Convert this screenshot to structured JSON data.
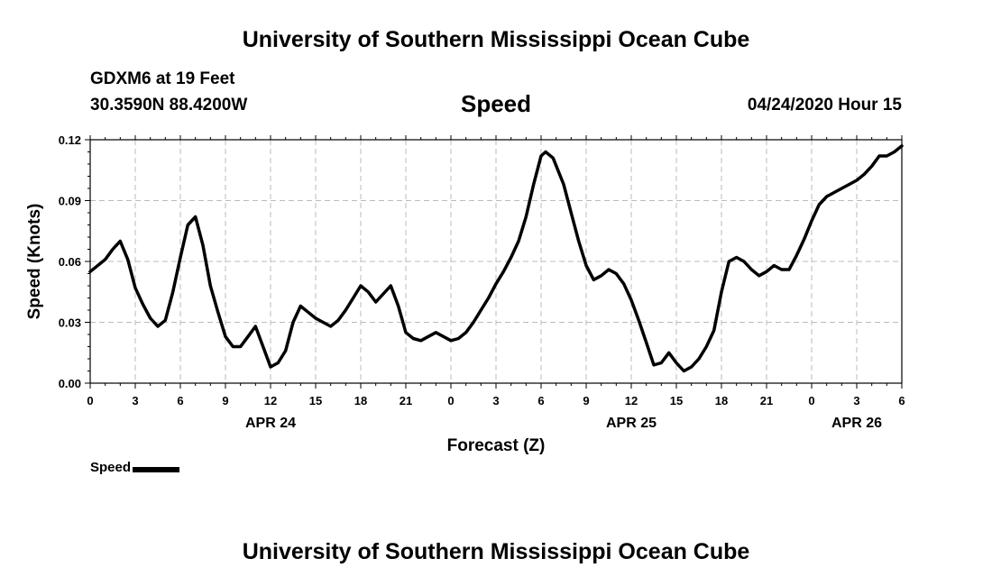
{
  "header": {
    "title": "University of Southern Mississippi Ocean Cube",
    "station": "GDXM6 at 19 Feet",
    "coords": "30.3590N 88.4200W",
    "datetime": "04/24/2020 Hour 15"
  },
  "footer": {
    "title": "University of Southern Mississippi Ocean Cube"
  },
  "chart_data": {
    "type": "line",
    "title": "Speed",
    "xlabel": "Forecast (Z)",
    "ylabel": "Speed (Knots)",
    "ylim": [
      0,
      0.12
    ],
    "yticks": [
      "0.00",
      "0.03",
      "0.06",
      "0.09",
      "0.12"
    ],
    "xlim": [
      0,
      54
    ],
    "xticks": [
      "0",
      "3",
      "6",
      "9",
      "12",
      "15",
      "18",
      "21",
      "0",
      "3",
      "6",
      "9",
      "12",
      "15",
      "18",
      "21",
      "0",
      "3",
      "6"
    ],
    "date_labels": [
      {
        "hour": 12,
        "label": "APR 24"
      },
      {
        "hour": 36,
        "label": "APR 25"
      },
      {
        "hour": 51,
        "label": "APR 26"
      }
    ],
    "grid": true,
    "legend": "bottom-left",
    "series": [
      {
        "name": "Speed",
        "color": "#000000",
        "x": [
          0,
          1,
          1.5,
          2,
          2.5,
          3,
          3.5,
          4,
          4.5,
          5,
          5.5,
          6,
          6.5,
          7,
          7.5,
          8,
          8.5,
          9,
          9.5,
          10,
          10.5,
          11,
          11.5,
          12,
          12.5,
          13,
          13.5,
          14,
          14.5,
          15,
          15.5,
          16,
          16.5,
          17,
          17.5,
          18,
          18.5,
          19,
          19.5,
          20,
          20.5,
          21,
          21.5,
          22,
          22.5,
          23,
          23.5,
          24,
          24.5,
          25,
          25.5,
          26,
          26.5,
          27,
          27.5,
          28,
          28.5,
          29,
          29.5,
          30,
          30.3,
          30.8,
          31.5,
          32,
          32.5,
          33,
          33.5,
          34,
          34.5,
          35,
          35.5,
          36,
          36.5,
          37,
          37.5,
          38,
          38.5,
          39,
          39.5,
          40,
          40.5,
          41,
          41.5,
          42,
          42.5,
          43,
          43.5,
          44,
          44.5,
          45,
          45.5,
          46,
          46.5,
          47,
          47.5,
          48,
          48.5,
          49,
          49.5,
          50,
          50.5,
          51,
          51.5,
          52,
          52.5,
          53,
          53.5,
          54
        ],
        "values": [
          0.055,
          0.061,
          0.066,
          0.07,
          0.061,
          0.047,
          0.039,
          0.032,
          0.028,
          0.031,
          0.045,
          0.062,
          0.078,
          0.082,
          0.068,
          0.048,
          0.035,
          0.023,
          0.018,
          0.018,
          0.023,
          0.028,
          0.018,
          0.008,
          0.01,
          0.016,
          0.03,
          0.038,
          0.035,
          0.032,
          0.03,
          0.028,
          0.031,
          0.036,
          0.042,
          0.048,
          0.045,
          0.04,
          0.044,
          0.048,
          0.038,
          0.025,
          0.022,
          0.021,
          0.023,
          0.025,
          0.023,
          0.021,
          0.022,
          0.025,
          0.03,
          0.036,
          0.042,
          0.049,
          0.055,
          0.062,
          0.07,
          0.082,
          0.098,
          0.112,
          0.114,
          0.111,
          0.098,
          0.084,
          0.07,
          0.058,
          0.051,
          0.053,
          0.056,
          0.054,
          0.049,
          0.041,
          0.031,
          0.02,
          0.009,
          0.01,
          0.015,
          0.01,
          0.006,
          0.008,
          0.012,
          0.018,
          0.026,
          0.045,
          0.06,
          0.062,
          0.06,
          0.056,
          0.053,
          0.055,
          0.058,
          0.056,
          0.056,
          0.063,
          0.071,
          0.08,
          0.088,
          0.092,
          0.094,
          0.096,
          0.098,
          0.1,
          0.103,
          0.107,
          0.112,
          0.112,
          0.114,
          0.117
        ]
      }
    ]
  }
}
